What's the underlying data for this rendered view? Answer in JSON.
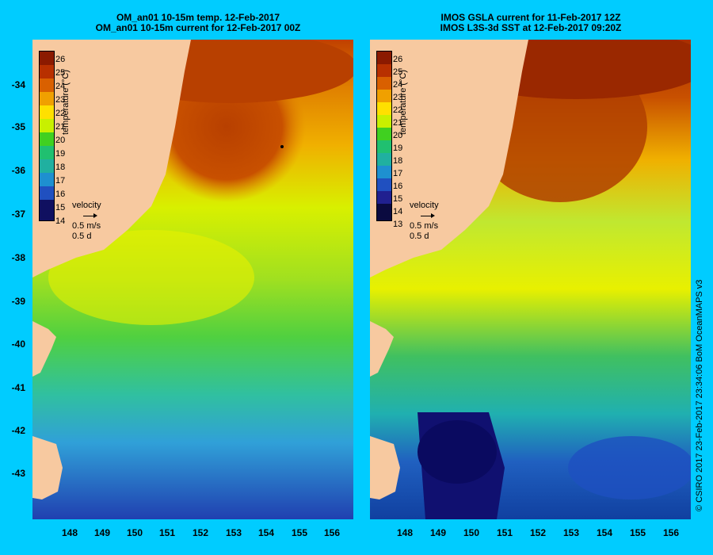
{
  "left_panel": {
    "title_line1": "OM_an01 10-15m temp. 12-Feb-2017",
    "title_line2": "OM_an01 10-15m current for 12-Feb-2017 00Z",
    "colorbar_ticks": [
      "26",
      "25",
      "24",
      "23",
      "22",
      "21",
      "20",
      "19",
      "18",
      "17",
      "16",
      "15",
      "14"
    ],
    "colorbar_label": "temperature (°C)",
    "velocity_label": "velocity",
    "velocity_scale": "0.5 m/s",
    "velocity_time": "0.5 d"
  },
  "right_panel": {
    "title_line1": "IMOS GSLA current for 11-Feb-2017 12Z",
    "title_line2": "IMOS L3S-3d SST at 12-Feb-2017 09:20Z",
    "colorbar_ticks": [
      "26",
      "25",
      "24",
      "23",
      "22",
      "21",
      "20",
      "19",
      "18",
      "17",
      "16",
      "15",
      "14",
      "13"
    ],
    "colorbar_label": "temperature (°C)",
    "velocity_label": "velocity",
    "velocity_scale": "0.5 m/s",
    "velocity_time": "0.5 d"
  },
  "axes": {
    "y_ticks": [
      "-34",
      "-35",
      "-36",
      "-37",
      "-38",
      "-39",
      "-40",
      "-41",
      "-42",
      "-43"
    ],
    "x_ticks": [
      "148",
      "149",
      "150",
      "151",
      "152",
      "153",
      "154",
      "155",
      "156"
    ]
  },
  "credit": "© CSIRO 2017   23-Feb-2017 23:34:06 BoM OceanMAPS v3",
  "colors": {
    "background": "#00ccff",
    "land": "#f7c9a0",
    "colormap": [
      "#8b1a00",
      "#b83000",
      "#d96000",
      "#f0a000",
      "#ffe000",
      "#c8f000",
      "#40d020",
      "#20c070",
      "#20b0a0",
      "#1e90d0",
      "#2050c0",
      "#202090",
      "#101060",
      "#0a0a40"
    ]
  }
}
